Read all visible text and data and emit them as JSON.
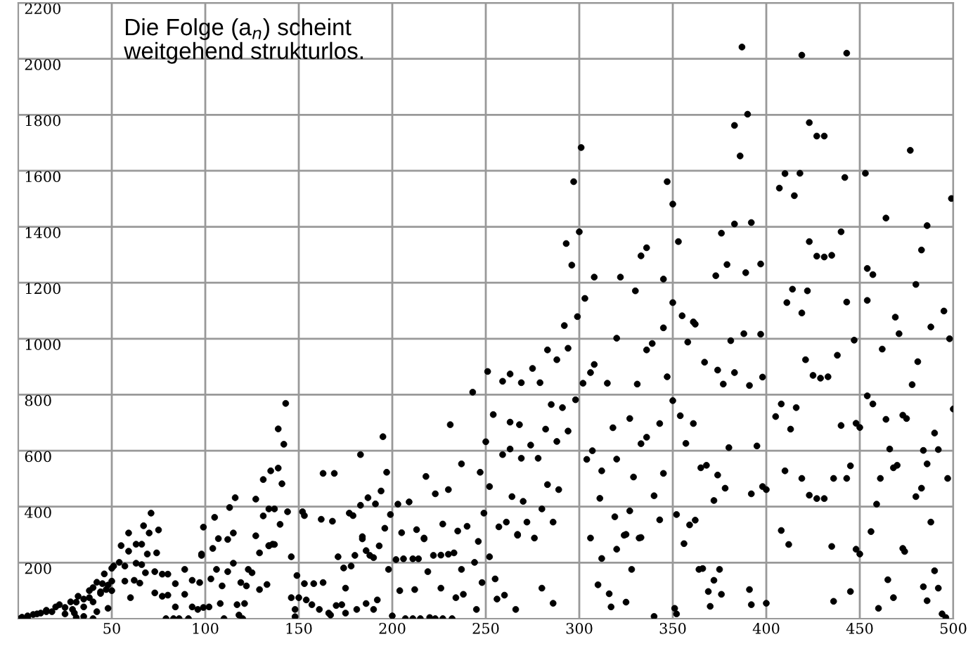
{
  "chart_data": {
    "type": "scatter",
    "color": "#000000",
    "marker": "circle",
    "grid": true,
    "xlim": [
      0,
      500
    ],
    "ylim": [
      0,
      2200
    ],
    "xticks": [
      50,
      100,
      150,
      200,
      250,
      300,
      350,
      400,
      450,
      500
    ],
    "yticks": [
      200,
      400,
      600,
      800,
      1000,
      1200,
      1400,
      1600,
      1800,
      2000,
      2200
    ],
    "annotations": [
      "Die Folge (a$_{n}$) scheint\nweitgehend strukturlos."
    ],
    "x": [
      1,
      2,
      5,
      5,
      8,
      10,
      12,
      15,
      15,
      18,
      20,
      22,
      25,
      25,
      28,
      29,
      30,
      31,
      31,
      32,
      35,
      35,
      35,
      38,
      38,
      40,
      40,
      40,
      42,
      42,
      44,
      44,
      45,
      46,
      47,
      48,
      48,
      50,
      50,
      50,
      51,
      54,
      55,
      57,
      57,
      59,
      59,
      60,
      62,
      63,
      63,
      65,
      66,
      66,
      67,
      68,
      69,
      70,
      71,
      73,
      73,
      75,
      74,
      77,
      77,
      79,
      80,
      80,
      83,
      84,
      84,
      86,
      89,
      89,
      91,
      93,
      93,
      96,
      97,
      98,
      98,
      99,
      99,
      102,
      103,
      104,
      105,
      106,
      107,
      108,
      109,
      110,
      112,
      112,
      113,
      115,
      115,
      116,
      117,
      118,
      119,
      120,
      121,
      122,
      123,
      125,
      127,
      127,
      129,
      129,
      131,
      131,
      133,
      134,
      134,
      134,
      135,
      136,
      137,
      137,
      139,
      139,
      140,
      141,
      142,
      143,
      144,
      146,
      146,
      148,
      148,
      149,
      150,
      152,
      153,
      153,
      154,
      157,
      158,
      161,
      162,
      163,
      163,
      166,
      167,
      168,
      169,
      170,
      171,
      173,
      174,
      175,
      175,
      177,
      178,
      179,
      180,
      181,
      183,
      183,
      184,
      184,
      186,
      186,
      187,
      188,
      190,
      190,
      191,
      192,
      193,
      194,
      195,
      196,
      197,
      198,
      199,
      200,
      202,
      203,
      204,
      205,
      206,
      207,
      209,
      211,
      211,
      212,
      213,
      214,
      215,
      217,
      217,
      218,
      219,
      220,
      222,
      223,
      223,
      226,
      226,
      227,
      227,
      230,
      230,
      231,
      232,
      233,
      234,
      235,
      237,
      237,
      238,
      240,
      243,
      244,
      245,
      246,
      247,
      248,
      249,
      250,
      251,
      252,
      252,
      254,
      255,
      256,
      257,
      259,
      259,
      260,
      261,
      263,
      263,
      263,
      264,
      266,
      267,
      267,
      268,
      269,
      269,
      270,
      272,
      274,
      275,
      276,
      278,
      279,
      280,
      280,
      282,
      283,
      283,
      285,
      286,
      286,
      288,
      288,
      289,
      291,
      292,
      293,
      294,
      294,
      296,
      297,
      298,
      299,
      300,
      301,
      302,
      303,
      304,
      306,
      306,
      307,
      308,
      308,
      310,
      311,
      312,
      312,
      315,
      316,
      317,
      318,
      319,
      320,
      320,
      320,
      322,
      324,
      325,
      325,
      327,
      327,
      328,
      329,
      330,
      331,
      332,
      333,
      333,
      333,
      336,
      336,
      336,
      339,
      340,
      340,
      343,
      343,
      345,
      345,
      345,
      347,
      347,
      350,
      350,
      350,
      351,
      352,
      352,
      353,
      354,
      355,
      356,
      357,
      358,
      359,
      361,
      361,
      362,
      362,
      364,
      365,
      366,
      367,
      368,
      369,
      370,
      372,
      372,
      373,
      374,
      374,
      375,
      376,
      376,
      377,
      378,
      379,
      380,
      381,
      383,
      383,
      383,
      386,
      387,
      388,
      389,
      390,
      391,
      391,
      392,
      392,
      392,
      395,
      397,
      397,
      398,
      398,
      400,
      400,
      405,
      407,
      408,
      408,
      410,
      410,
      411,
      412,
      413,
      414,
      415,
      416,
      418,
      419,
      419,
      419,
      421,
      422,
      423,
      423,
      423,
      425,
      427,
      427,
      427,
      429,
      431,
      431,
      431,
      433,
      435,
      435,
      436,
      436,
      438,
      440,
      440,
      442,
      443,
      443,
      443,
      445,
      445,
      447,
      448,
      448,
      450,
      450,
      453,
      454,
      454,
      454,
      456,
      457,
      457,
      459,
      460,
      461,
      462,
      464,
      464,
      465,
      466,
      468,
      468,
      469,
      470,
      471,
      473,
      473,
      474,
      475,
      477,
      478,
      480,
      480,
      481,
      483,
      483,
      484,
      484,
      486,
      486,
      486,
      488,
      488,
      490,
      490,
      492,
      492,
      494,
      495,
      496,
      497,
      498,
      499,
      500
    ],
    "values": [
      0,
      5,
      4,
      10,
      15,
      17,
      20,
      25,
      30,
      25,
      42,
      50,
      17,
      40,
      60,
      33,
      20,
      59,
      4,
      80,
      42,
      8,
      70,
      100,
      75,
      0,
      111,
      60,
      25,
      130,
      96,
      90,
      125,
      160,
      104,
      120,
      37,
      180,
      100,
      134,
      188,
      201,
      261,
      134,
      188,
      241,
      306,
      75,
      137,
      198,
      266,
      127,
      266,
      193,
      332,
      164,
      231,
      306,
      377,
      168,
      92,
      317,
      235,
      80,
      159,
      0,
      159,
      84,
      0,
      125,
      42,
      0,
      176,
      87,
      0,
      137,
      42,
      33,
      129,
      226,
      231,
      327,
      40,
      42,
      142,
      251,
      362,
      176,
      286,
      54,
      117,
      0,
      168,
      283,
      397,
      198,
      306,
      432,
      50,
      13,
      129,
      0,
      54,
      117,
      176,
      164,
      296,
      427,
      104,
      235,
      367,
      497,
      122,
      260,
      392,
      261,
      528,
      266,
      265,
      392,
      538,
      678,
      337,
      482,
      623,
      769,
      382,
      221,
      75,
      33,
      7,
      154,
      75,
      382,
      125,
      368,
      67,
      50,
      125,
      33,
      355,
      519,
      129,
      20,
      13,
      348,
      519,
      47,
      221,
      50,
      181,
      109,
      20,
      377,
      188,
      368,
      226,
      33,
      405,
      586,
      293,
      285,
      243,
      54,
      432,
      226,
      218,
      33,
      410,
      67,
      260,
      456,
      650,
      323,
      523,
      176,
      372,
      10,
      211,
      409,
      100,
      307,
      214,
      0,
      417,
      214,
      0,
      104,
      318,
      214,
      0,
      288,
      285,
      508,
      168,
      4,
      226,
      0,
      446,
      109,
      227,
      338,
      0,
      461,
      230,
      693,
      0,
      235,
      75,
      313,
      553,
      176,
      87,
      330,
      809,
      201,
      33,
      276,
      523,
      129,
      377,
      632,
      883,
      221,
      472,
      729,
      142,
      70,
      328,
      848,
      586,
      84,
      345,
      874,
      606,
      702,
      436,
      33,
      298,
      301,
      693,
      843,
      573,
      419,
      345,
      620,
      894,
      288,
      573,
      843,
      109,
      392,
      677,
      960,
      479,
      765,
      55,
      345,
      925,
      633,
      461,
      754,
      1047,
      1340,
      966,
      670,
      1263,
      1561,
      782,
      1079,
      1382,
      1683,
      841,
      1144,
      569,
      879,
      288,
      600,
      1220,
      908,
      121,
      430,
      215,
      528,
      841,
      89,
      42,
      682,
      364,
      248,
      1002,
      570,
      1220,
      298,
      301,
      59,
      385,
      715,
      176,
      506,
      1171,
      838,
      288,
      625,
      290,
      1296,
      960,
      648,
      1325,
      983,
      8,
      439,
      697,
      353,
      1213,
      1039,
      519,
      864,
      1561,
      1129,
      779,
      1481,
      37,
      372,
      17,
      1347,
      725,
      1082,
      268,
      626,
      988,
      335,
      697,
      1060,
      352,
      1052,
      176,
      539,
      179,
      916,
      548,
      97,
      44,
      137,
      422,
      1225,
      888,
      513,
      176,
      87,
      1377,
      838,
      466,
      1265,
      611,
      993,
      1762,
      879,
      1410,
      1653,
      2042,
      1018,
      1236,
      1802,
      104,
      833,
      50,
      446,
      1415,
      617,
      1016,
      1267,
      863,
      472,
      55,
      461,
      722,
      1538,
      767,
      315,
      528,
      1590,
      1129,
      265,
      677,
      1177,
      1511,
      754,
      1591,
      501,
      1092,
      2013,
      925,
      1171,
      1772,
      441,
      1347,
      869,
      1724,
      429,
      1295,
      859,
      1724,
      1292,
      429,
      864,
      258,
      1298,
      62,
      501,
      941,
      690,
      1382,
      1576,
      1131,
      2020,
      501,
      97,
      546,
      995,
      248,
      698,
      231,
      683,
      1591,
      796,
      1251,
      1137,
      311,
      767,
      1229,
      409,
      37,
      501,
      963,
      712,
      1431,
      139,
      606,
      75,
      539,
      1077,
      548,
      1018,
      251,
      727,
      240,
      715,
      1673,
      836,
      436,
      1194,
      918,
      466,
      1317,
      114,
      601,
      64,
      553,
      1404,
      345,
      1042,
      171,
      663,
      109,
      604,
      17,
      1099,
      4,
      501,
      1000,
      1501,
      749
    ]
  }
}
